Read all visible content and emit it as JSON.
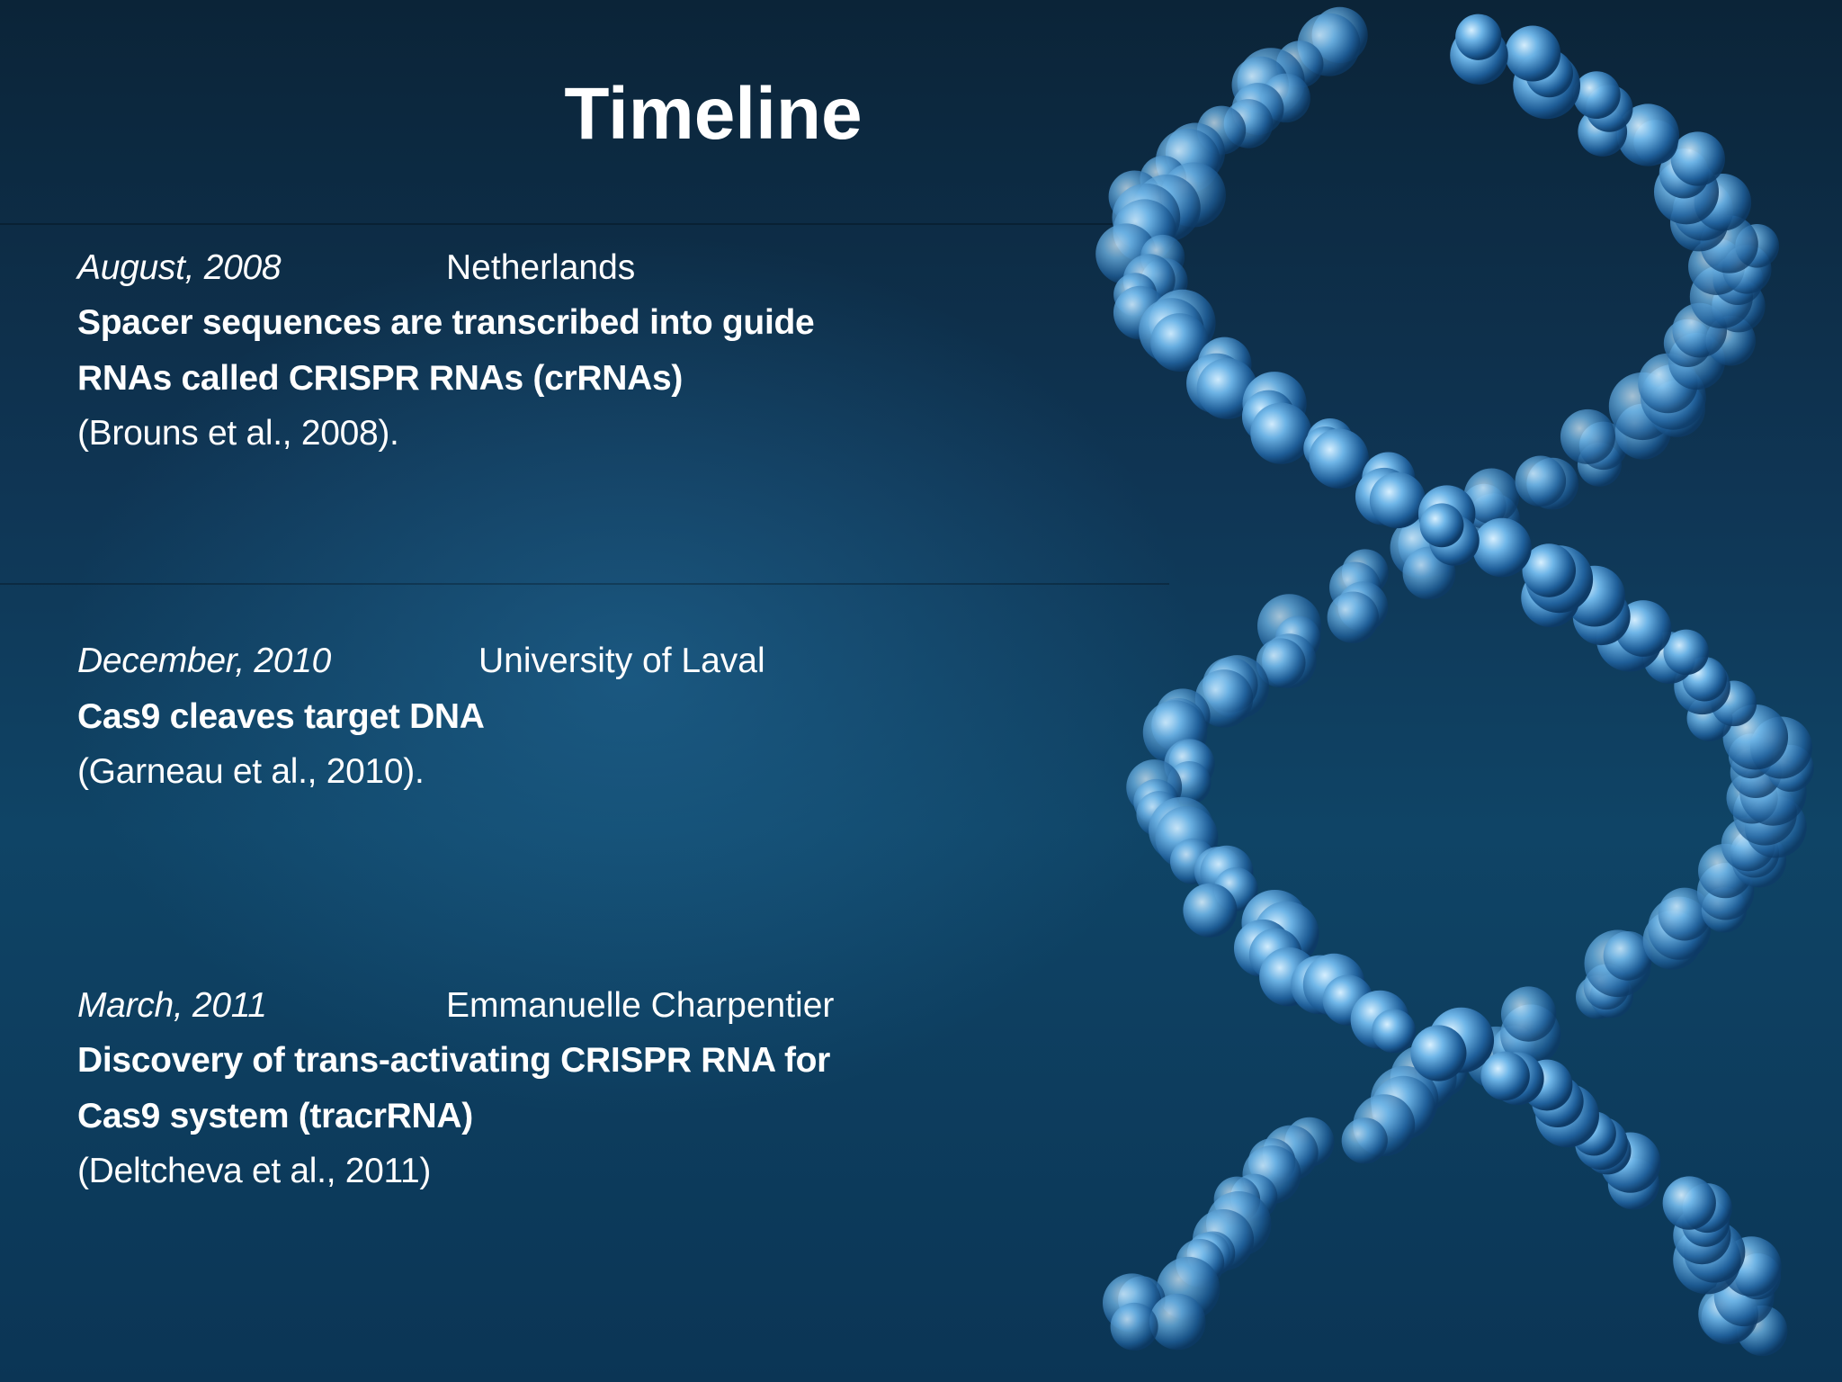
{
  "slide": {
    "title": "Timeline",
    "entries": [
      {
        "date": "August, 2008",
        "location": "Netherlands",
        "description_lines": [
          "Spacer sequences are transcribed into guide",
          "RNAs called CRISPR RNAs (crRNAs)"
        ],
        "citation": "(Brouns et al., 2008)."
      },
      {
        "date": "December, 2010",
        "location": "University of Laval",
        "description_lines": [
          "Cas9 cleaves target DNA"
        ],
        "citation": "(Garneau et al., 2010)."
      },
      {
        "date": "March, 2011",
        "location": "Emmanuelle Charpentier",
        "description_lines": [
          "Discovery of trans-activating CRISPR RNA for",
          "Cas9 system (tracrRNA)"
        ],
        "citation": "(Deltcheva et al., 2011)"
      }
    ],
    "colors": {
      "background": "#0f3554",
      "text": "#ffffff",
      "dna": "#4a9fd8"
    },
    "image": "dna-double-helix"
  }
}
